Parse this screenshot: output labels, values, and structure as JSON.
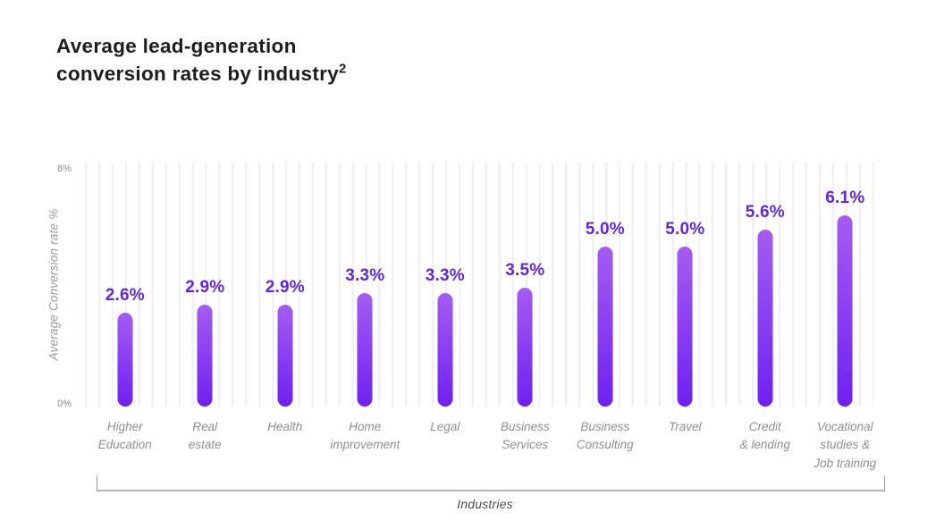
{
  "title": {
    "line1": "Average lead-generation",
    "line2": "conversion rates by industry",
    "superscript": "2"
  },
  "axes": {
    "y_top_tick": "8%",
    "y_bottom_tick": "0%",
    "y_label": "Average Conversion rate %",
    "x_label": "Industries"
  },
  "chart_data": {
    "type": "bar",
    "title": "Average lead-generation conversion rates by industry²",
    "xlabel": "Industries",
    "ylabel": "Average Conversion rate %",
    "ylim": [
      0,
      8
    ],
    "yticks": [
      "0%",
      "8%"
    ],
    "grid": "vertical-light-gridlines",
    "legend": "none",
    "categories": [
      "Higher Education",
      "Real estate",
      "Health",
      "Home improvement",
      "Legal",
      "Business Services",
      "Business Consulting",
      "Travel",
      "Credit & lending",
      "Vocational studies & Job training"
    ],
    "category_lines": [
      [
        "Higher",
        "Education"
      ],
      [
        "Real",
        "estate"
      ],
      [
        "Health"
      ],
      [
        "Home",
        "improvement"
      ],
      [
        "Legal"
      ],
      [
        "Business",
        "Services"
      ],
      [
        "Business",
        "Consulting"
      ],
      [
        "Travel"
      ],
      [
        "Credit",
        "& lending"
      ],
      [
        "Vocational",
        "studies &",
        "Job training"
      ]
    ],
    "values": [
      2.6,
      2.9,
      2.9,
      3.3,
      3.3,
      3.5,
      5.0,
      5.0,
      5.6,
      6.1
    ],
    "value_labels": [
      "2.6%",
      "2.9%",
      "2.9%",
      "3.3%",
      "3.3%",
      "3.5%",
      "5.0%",
      "5.0%",
      "5.6%",
      "6.1%"
    ],
    "colors": {
      "bar_gradient_top": "#a55cf1",
      "bar_gradient_bottom": "#7020f2",
      "value_label": "#5e28dd",
      "gridline": "#f1f1f3",
      "title_text": "#1d1d1f",
      "axis_text": "#8e8e8e",
      "category_text": "#8f8f8f",
      "bracket_line": "#b5b5b5"
    }
  }
}
